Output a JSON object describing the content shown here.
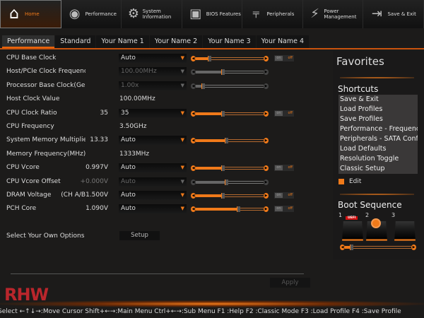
{
  "nav": [
    {
      "label": "Home",
      "icon": "home-icon",
      "glyph": "⌂",
      "active": true
    },
    {
      "label": "Performance",
      "icon": "gauge-icon",
      "glyph": "◉"
    },
    {
      "label": "System Information",
      "icon": "gear-icon",
      "glyph": "⚙"
    },
    {
      "label": "BIOS Features",
      "icon": "chip-icon",
      "glyph": "▣"
    },
    {
      "label": "Peripherals",
      "icon": "plug-icon",
      "glyph": "⫧"
    },
    {
      "label": "Power Management",
      "icon": "power-icon",
      "glyph": "⚡"
    },
    {
      "label": "Save & Exit",
      "icon": "exit-icon",
      "glyph": "⇥"
    }
  ],
  "subtabs": [
    "Performance",
    "Standard",
    "Your Name 1",
    "Your Name 2",
    "Your Name 3",
    "Your Name 4"
  ],
  "rows": [
    {
      "label": "CPU Base Clock",
      "value": "",
      "select": "Auto",
      "slider": 0.2,
      "toggle": true
    },
    {
      "label": "Host/PCIe Clock Frequency",
      "value": "",
      "select": "100.00MHz",
      "disabled": true,
      "slider": 0.4
    },
    {
      "label": "Processor Base Clock(Gear Ratio)",
      "value": "",
      "select": "1.00x",
      "disabled": true,
      "slider": 0.1
    },
    {
      "label": "Host Clock Value",
      "info": "100.00MHz"
    },
    {
      "label": "CPU Clock Ratio",
      "value": "35",
      "select": "35",
      "slider": 0.4,
      "toggle": true
    },
    {
      "label": "CPU Frequency",
      "info": "3.50GHz"
    },
    {
      "label": "System Memory Multiplier",
      "value": "13.33",
      "select": "Auto",
      "slider": 0.45
    },
    {
      "label": "Memory Frequency(MHz)",
      "info": "1333MHz"
    },
    {
      "label": "CPU Vcore",
      "value": "0.997V",
      "select": "Auto",
      "slider": 0.4,
      "toggle": true
    },
    {
      "label": "CPU Vcore Offset",
      "value": "+0.000V",
      "valueDim": true,
      "select": "Auto",
      "disabled": true,
      "slider": 0.45
    },
    {
      "label": "DRAM Voltage",
      "value": "(CH A/B1.500V",
      "select": "Auto",
      "slider": 0.4,
      "toggle": true
    },
    {
      "label": "PCH Core",
      "value": "1.090V",
      "select": "Auto",
      "slider": 0.63,
      "toggle": true
    }
  ],
  "toggle": {
    "on": "on",
    "off": "off"
  },
  "own_options": {
    "label": "Select Your Own Options",
    "button": "Setup"
  },
  "apply": "Apply",
  "favorites": {
    "title": "Favorites",
    "shortcuts_title": "Shortcuts",
    "shortcuts": [
      "Save & Exit",
      "Load Profiles",
      "Save Profiles",
      "Performance - Frequency",
      "Peripherals - SATA Configuration",
      "Load Defaults",
      "Resolution Toggle",
      "Classic Setup"
    ],
    "edit": "Edit"
  },
  "boot": {
    "title": "Boot Sequence",
    "numbers": [
      "1",
      "2",
      "3"
    ],
    "badge": "UEFI",
    "slider": 0.1
  },
  "logo": "RHW",
  "help": "Select ←↑↓→:Move Cursor Shift+←→:Main Menu Ctrl+←→:Sub Menu F1 :Help F2 :Classic Mode F3 :Load Profile F4 :Save Profile",
  "colors": {
    "accent": "#f07a1a",
    "logo": "#b9262c"
  }
}
